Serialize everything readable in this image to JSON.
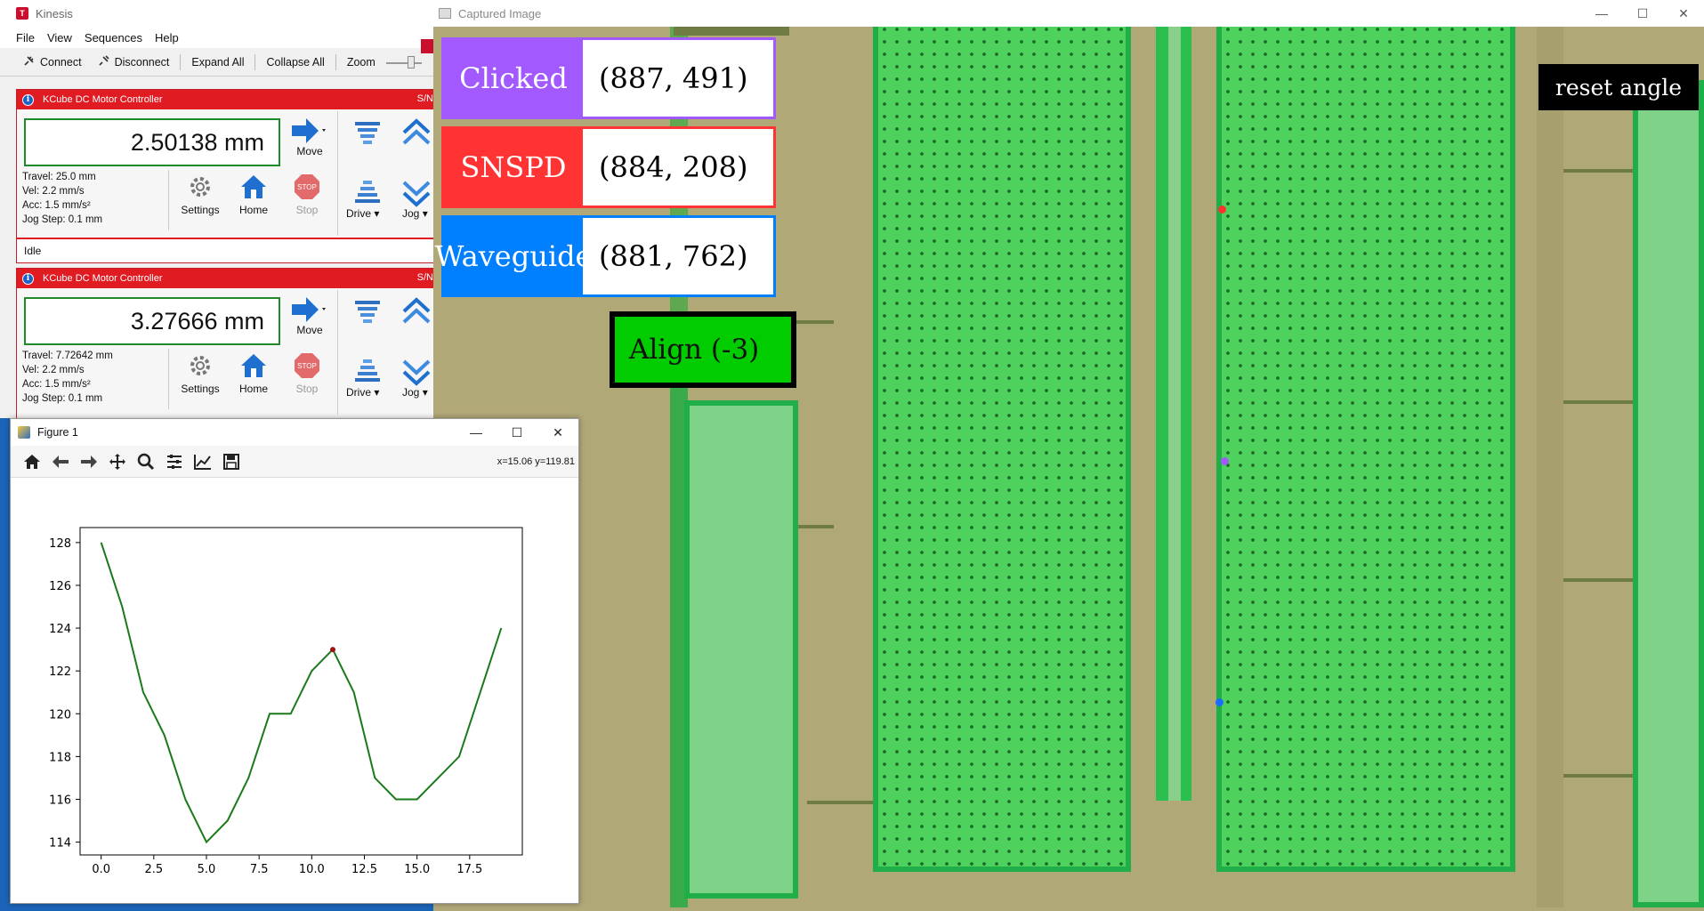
{
  "kinesis": {
    "title": "Kinesis",
    "menu": [
      "File",
      "View",
      "Sequences",
      "Help"
    ],
    "toolbar": {
      "connect": "Connect",
      "disconnect": "Disconnect",
      "expand_all": "Expand All",
      "collapse_all": "Collapse All",
      "zoom": "Zoom"
    },
    "controllers": [
      {
        "name": "KCube DC Motor Controller",
        "serial_label": "S/N",
        "position": "2.50138 mm",
        "travel": "Travel: 25.0 mm",
        "vel": "Vel: 2.2 mm/s",
        "acc": "Acc: 1.5 mm/s²",
        "jog_step": "Jog Step: 0.1 mm",
        "status": "Idle"
      },
      {
        "name": "KCube DC Motor Controller",
        "serial_label": "S/N",
        "position": "3.27666 mm",
        "travel": "Travel: 7.72642 mm",
        "vel": "Vel: 2.2 mm/s",
        "acc": "Acc: 1.5 mm/s²",
        "jog_step": "Jog Step: 0.1 mm"
      }
    ],
    "labels": {
      "move": "Move",
      "settings": "Settings",
      "home": "Home",
      "stop": "Stop",
      "drive": "Drive",
      "jog": "Jog"
    }
  },
  "figure": {
    "title": "Figure 1",
    "coord_readout": "x=15.06 y=119.81",
    "toolbar_icons": [
      "home-icon",
      "back-icon",
      "forward-icon",
      "pan-icon",
      "zoom-icon",
      "configure-subplots-icon",
      "edit-axis-icon",
      "save-icon"
    ]
  },
  "chart_data": {
    "type": "line",
    "title": "",
    "xlabel": "",
    "ylabel": "",
    "xlim": [
      -1,
      20
    ],
    "ylim": [
      113.4,
      128.7
    ],
    "x_ticks": [
      "0.0",
      "2.5",
      "5.0",
      "7.5",
      "10.0",
      "12.5",
      "15.0",
      "17.5"
    ],
    "y_ticks": [
      "114",
      "116",
      "118",
      "120",
      "122",
      "124",
      "126",
      "128"
    ],
    "x_tick_values": [
      0,
      2.5,
      5,
      7.5,
      10,
      12.5,
      15,
      17.5
    ],
    "y_tick_values": [
      114,
      116,
      118,
      120,
      122,
      124,
      126,
      128
    ],
    "series": [
      {
        "color": "#1a7a1a",
        "x": [
          0,
          1,
          2,
          3,
          4,
          5,
          6,
          7,
          8,
          9,
          10,
          11,
          12,
          13,
          14,
          15,
          16,
          17,
          18,
          19
        ],
        "values": [
          128,
          125,
          121,
          119,
          116,
          114,
          115,
          117,
          120,
          120,
          122,
          123,
          121,
          117,
          116,
          116,
          117,
          118,
          121,
          124
        ]
      }
    ],
    "highlight_point": {
      "x": 11,
      "y": 123,
      "color": "#a01010"
    }
  },
  "captured": {
    "title": "Captured Image",
    "clicked": {
      "label": "Clicked",
      "value": "(887, 491)",
      "color": "#a259ff"
    },
    "snspd": {
      "label": "SNSPD",
      "value": "(884, 208)",
      "color": "#ff3333"
    },
    "waveguide": {
      "label": "Waveguide",
      "value": "(881, 762)",
      "color": "#0080ff"
    },
    "align": "Align (-3)",
    "reset_angle": "reset angle",
    "markers": {
      "snspd": "#ff3030",
      "clicked": "#a259ff",
      "waveguide": "#1a6cff"
    }
  }
}
